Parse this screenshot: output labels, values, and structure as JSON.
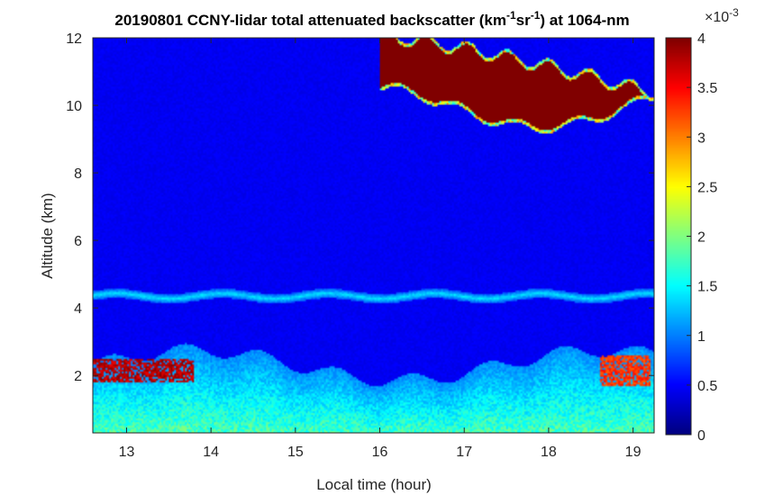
{
  "chart_data": {
    "type": "heatmap",
    "title": {
      "prefix": "20190801 CCNY-lidar total attenuated backscatter (km",
      "sup1": "-1",
      "mid": "sr",
      "sup2": "-1",
      "suffix": ") at 1064-nm"
    },
    "xlabel": "Local time (hour)",
    "ylabel": "Altitude (km)",
    "xlim": [
      12.6,
      19.25
    ],
    "ylim": [
      0.3,
      12
    ],
    "x_ticks": [
      13,
      14,
      15,
      16,
      17,
      18,
      19
    ],
    "y_ticks": [
      2,
      4,
      6,
      8,
      10,
      12
    ],
    "colorbar": {
      "range": [
        0,
        4
      ],
      "multiplier_base": "×10",
      "multiplier_exp": "-3",
      "ticks": [
        {
          "value": 0,
          "label": "0"
        },
        {
          "value": 0.5,
          "label": "0.5"
        },
        {
          "value": 1,
          "label": "1"
        },
        {
          "value": 1.5,
          "label": "1.5"
        },
        {
          "value": 2,
          "label": "2"
        },
        {
          "value": 2.5,
          "label": "2.5"
        },
        {
          "value": 3,
          "label": "3"
        },
        {
          "value": 3.5,
          "label": "3.5"
        },
        {
          "value": 4,
          "label": "4"
        }
      ],
      "colormap": "jet"
    },
    "features": {
      "cirrus_cloud": {
        "time_start": 16.0,
        "time_end": 19.25,
        "alt_bottom_range": [
          9.4,
          10.6
        ],
        "alt_top_range": [
          10.3,
          12.0
        ],
        "value": 4.0
      },
      "elevated_layer": {
        "time_start": 12.6,
        "time_end": 19.25,
        "alt_range": [
          4.1,
          4.6
        ],
        "value": 0.7
      },
      "boundary_layer": {
        "alt_top_range": [
          1.8,
          2.9
        ],
        "value_range": [
          0.6,
          2.2
        ]
      },
      "low_cloud_segments": [
        {
          "time_start": 12.6,
          "time_end": 13.8,
          "alt_range": [
            1.8,
            2.5
          ],
          "value": 4.0
        },
        {
          "time_start": 18.6,
          "time_end": 19.2,
          "alt_range": [
            1.7,
            2.6
          ],
          "value": 3.5
        }
      ],
      "background_value": 0.45
    }
  }
}
